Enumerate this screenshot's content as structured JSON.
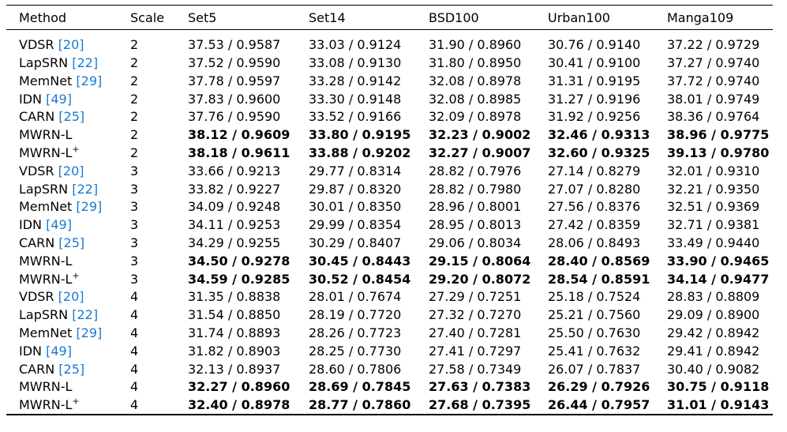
{
  "table": {
    "headers": [
      "Method",
      "Scale",
      "Set5",
      "Set14",
      "BSD100",
      "Urban100",
      "Manga109"
    ],
    "rows": [
      {
        "method": "VDSR",
        "ref": "[20]",
        "scale": "2",
        "bold": false,
        "vals": [
          "37.53 / 0.9587",
          "33.03 / 0.9124",
          "31.90 / 0.8960",
          "30.76 / 0.9140",
          "37.22 / 0.9729"
        ]
      },
      {
        "method": "LapSRN",
        "ref": "[22]",
        "scale": "2",
        "bold": false,
        "vals": [
          "37.52 / 0.9590",
          "33.08 / 0.9130",
          "31.80 / 0.8950",
          "30.41 / 0.9100",
          "37.27 / 0.9740"
        ]
      },
      {
        "method": "MemNet",
        "ref": "[29]",
        "scale": "2",
        "bold": false,
        "vals": [
          "37.78 / 0.9597",
          "33.28 / 0.9142",
          "32.08 / 0.8978",
          "31.31 / 0.9195",
          "37.72 / 0.9740"
        ]
      },
      {
        "method": "IDN",
        "ref": "[49]",
        "scale": "2",
        "bold": false,
        "vals": [
          "37.83 / 0.9600",
          "33.30 / 0.9148",
          "32.08 / 0.8985",
          "31.27 / 0.9196",
          "38.01 / 0.9749"
        ]
      },
      {
        "method": "CARN",
        "ref": "[25]",
        "scale": "2",
        "bold": false,
        "vals": [
          "37.76 / 0.9590",
          "33.52 / 0.9166",
          "32.09 / 0.8978",
          "31.92 / 0.9256",
          "38.36 / 0.9764"
        ]
      },
      {
        "method": "MWRN-L",
        "ref": "",
        "scale": "2",
        "bold": true,
        "vals": [
          "38.12 / 0.9609",
          "33.80 / 0.9195",
          "32.23 / 0.9002",
          "32.46 / 0.9313",
          "38.96 / 0.9775"
        ]
      },
      {
        "method": "MWRN-L",
        "sup": "+",
        "ref": "",
        "scale": "2",
        "bold": true,
        "vals": [
          "38.18 / 0.9611",
          "33.88 / 0.9202",
          "32.27 / 0.9007",
          "32.60 / 0.9325",
          "39.13 / 0.9780"
        ]
      },
      {
        "method": "VDSR",
        "ref": "[20]",
        "scale": "3",
        "bold": false,
        "vals": [
          "33.66 / 0.9213",
          "29.77 / 0.8314",
          "28.82 / 0.7976",
          "27.14 / 0.8279",
          "32.01 / 0.9310"
        ]
      },
      {
        "method": "LapSRN",
        "ref": "[22]",
        "scale": "3",
        "bold": false,
        "vals": [
          "33.82 / 0.9227",
          "29.87 / 0.8320",
          "28.82 / 0.7980",
          "27.07 / 0.8280",
          "32.21 / 0.9350"
        ]
      },
      {
        "method": "MemNet",
        "ref": "[29]",
        "scale": "3",
        "bold": false,
        "vals": [
          "34.09 / 0.9248",
          "30.01 / 0.8350",
          "28.96 / 0.8001",
          "27.56 / 0.8376",
          "32.51 / 0.9369"
        ]
      },
      {
        "method": "IDN",
        "ref": "[49]",
        "scale": "3",
        "bold": false,
        "vals": [
          "34.11 / 0.9253",
          "29.99 / 0.8354",
          "28.95 / 0.8013",
          "27.42 / 0.8359",
          "32.71 / 0.9381"
        ]
      },
      {
        "method": "CARN",
        "ref": "[25]",
        "scale": "3",
        "bold": false,
        "vals": [
          "34.29 / 0.9255",
          "30.29 / 0.8407",
          "29.06 / 0.8034",
          "28.06 / 0.8493",
          "33.49 / 0.9440"
        ]
      },
      {
        "method": "MWRN-L",
        "ref": "",
        "scale": "3",
        "bold": true,
        "vals": [
          "34.50 / 0.9278",
          "30.45 / 0.8443",
          "29.15 / 0.8064",
          "28.40 / 0.8569",
          "33.90 / 0.9465"
        ]
      },
      {
        "method": "MWRN-L",
        "sup": "+",
        "ref": "",
        "scale": "3",
        "bold": true,
        "vals": [
          "34.59 / 0.9285",
          "30.52 / 0.8454",
          "29.20 / 0.8072",
          "28.54 / 0.8591",
          "34.14 / 0.9477"
        ]
      },
      {
        "method": "VDSR",
        "ref": "[20]",
        "scale": "4",
        "bold": false,
        "vals": [
          "31.35 / 0.8838",
          "28.01 / 0.7674",
          "27.29 / 0.7251",
          "25.18 / 0.7524",
          "28.83 / 0.8809"
        ]
      },
      {
        "method": "LapSRN",
        "ref": "[22]",
        "scale": "4",
        "bold": false,
        "vals": [
          "31.54 / 0.8850",
          "28.19 / 0.7720",
          "27.32 / 0.7270",
          "25.21 / 0.7560",
          "29.09 / 0.8900"
        ]
      },
      {
        "method": "MemNet",
        "ref": "[29]",
        "scale": "4",
        "bold": false,
        "vals": [
          "31.74 / 0.8893",
          "28.26 / 0.7723",
          "27.40 / 0.7281",
          "25.50 / 0.7630",
          "29.42 / 0.8942"
        ]
      },
      {
        "method": "IDN",
        "ref": "[49]",
        "scale": "4",
        "bold": false,
        "vals": [
          "31.82 / 0.8903",
          "28.25 / 0.7730",
          "27.41 / 0.7297",
          "25.41 / 0.7632",
          "29.41 / 0.8942"
        ]
      },
      {
        "method": "CARN",
        "ref": "[25]",
        "scale": "4",
        "bold": false,
        "vals": [
          "32.13 / 0.8937",
          "28.60 / 0.7806",
          "27.58 / 0.7349",
          "26.07 / 0.7837",
          "30.40 / 0.9082"
        ]
      },
      {
        "method": "MWRN-L",
        "ref": "",
        "scale": "4",
        "bold": true,
        "vals": [
          "32.27 / 0.8960",
          "28.69 / 0.7845",
          "27.63 / 0.7383",
          "26.29 / 0.7926",
          "30.75 / 0.9118"
        ]
      },
      {
        "method": "MWRN-L",
        "sup": "+",
        "ref": "",
        "scale": "4",
        "bold": true,
        "vals": [
          "32.40 / 0.8978",
          "28.77 / 0.7860",
          "27.68 / 0.7395",
          "26.44 / 0.7957",
          "31.01 / 0.9143"
        ]
      }
    ]
  }
}
